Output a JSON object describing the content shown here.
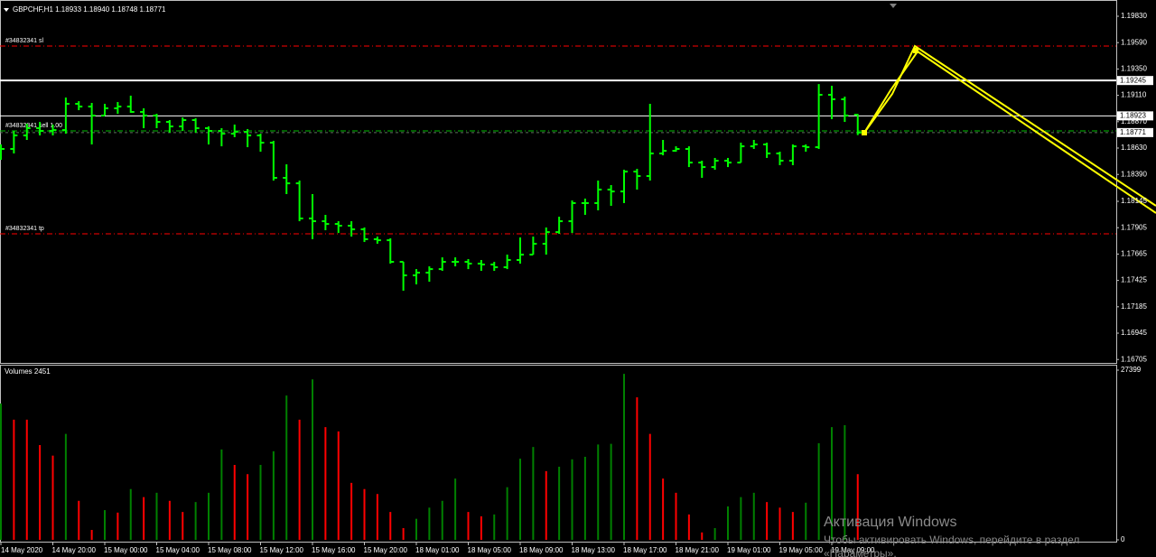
{
  "header": "GBPCHF,H1  1.18933 1.18940 1.18748 1.18771",
  "watermark": {
    "title": "Активация Windows",
    "lines": [
      "Чтобы активировать Windows, перейдите в раздел",
      "«Параметры»."
    ]
  },
  "chart_data": [
    {
      "type": "ohlc",
      "color": "#00ff00",
      "categories": [
        "14 May 2020",
        null,
        null,
        null,
        "14 May 20:00",
        null,
        null,
        null,
        "15 May 00:00",
        null,
        null,
        null,
        "15 May 04:00",
        null,
        null,
        null,
        "15 May 08:00",
        null,
        null,
        null,
        "15 May 12:00",
        null,
        null,
        null,
        "15 May 16:00",
        null,
        null,
        null,
        "15 May 20:00",
        null,
        null,
        null,
        "18 May 01:00",
        null,
        null,
        null,
        "18 May 05:00",
        null,
        null,
        null,
        "18 May 09:00",
        null,
        null,
        null,
        "18 May 13:00",
        null,
        null,
        null,
        "18 May 17:00",
        null,
        null,
        null,
        "18 May 21:00",
        null,
        null,
        null,
        "19 May 01:00",
        null,
        null,
        null,
        "19 May 05:00",
        null,
        null,
        null,
        "19 May 09:00",
        null,
        null
      ],
      "open": [
        1.1854,
        1.18622,
        1.18745,
        1.18811,
        1.18786,
        1.18794,
        1.19033,
        1.19008,
        1.18926,
        1.18992,
        1.19008,
        1.18959,
        1.18926,
        1.18868,
        1.18827,
        1.18885,
        1.18811,
        1.18786,
        1.18761,
        1.18778,
        1.18745,
        1.18679,
        1.18359,
        1.18309,
        1.17989,
        1.17964,
        1.17939,
        1.17923,
        1.1789,
        1.178,
        1.17791,
        1.17594,
        1.17471,
        1.17496,
        1.17528,
        1.17594,
        1.17594,
        1.17578,
        1.1757,
        1.17545,
        1.17611,
        1.1766,
        1.17759,
        1.17865,
        1.17964,
        1.18129,
        1.18129,
        1.18252,
        1.18235,
        1.18416,
        1.18375,
        1.18581,
        1.18605,
        1.18622,
        1.18498,
        1.18457,
        1.18515,
        1.18498,
        1.18646,
        1.18663,
        1.18581,
        1.18515,
        1.18646,
        1.18638,
        1.19115,
        1.19074,
        1.18933
      ],
      "high": [
        1.18663,
        1.18786,
        1.18852,
        1.18868,
        1.18844,
        1.1909,
        1.19057,
        1.19041,
        1.19033,
        1.19049,
        1.19107,
        1.18992,
        1.18942,
        1.18885,
        1.18909,
        1.18901,
        1.18827,
        1.18811,
        1.18844,
        1.18803,
        1.18761,
        1.18696,
        1.18482,
        1.18334,
        1.18211,
        1.18022,
        1.17964,
        1.17964,
        1.17907,
        1.17824,
        1.17808,
        1.17594,
        1.17528,
        1.17553,
        1.17635,
        1.17635,
        1.17619,
        1.17611,
        1.17594,
        1.1766,
        1.17816,
        1.17824,
        1.17907,
        1.18005,
        1.18153,
        1.1817,
        1.18334,
        1.18293,
        1.18433,
        1.18441,
        1.19033,
        1.18704,
        1.18646,
        1.18646,
        1.18515,
        1.1854,
        1.1854,
        1.18679,
        1.18704,
        1.18679,
        1.18597,
        1.18663,
        1.18663,
        1.19213,
        1.19197,
        1.19098,
        1.1894
      ],
      "low": [
        1.18523,
        1.18581,
        1.18704,
        1.18745,
        1.18745,
        1.18761,
        1.18975,
        1.18663,
        1.18926,
        1.18942,
        1.18951,
        1.18811,
        1.18811,
        1.1877,
        1.18786,
        1.1877,
        1.18663,
        1.18646,
        1.18729,
        1.18638,
        1.18597,
        1.18334,
        1.18211,
        1.17964,
        1.178,
        1.17882,
        1.17857,
        1.17824,
        1.17775,
        1.17759,
        1.17578,
        1.17331,
        1.17389,
        1.17413,
        1.17512,
        1.17553,
        1.17528,
        1.17512,
        1.17512,
        1.17528,
        1.17578,
        1.1766,
        1.1766,
        1.17849,
        1.17857,
        1.18022,
        1.18063,
        1.18104,
        1.18129,
        1.18252,
        1.18334,
        1.18564,
        1.18597,
        1.18457,
        1.18359,
        1.18433,
        1.18457,
        1.18498,
        1.18622,
        1.1854,
        1.18474,
        1.18474,
        1.18597,
        1.18622,
        1.18893,
        1.18868,
        1.18748
      ],
      "close": [
        1.18622,
        1.18745,
        1.18811,
        1.18786,
        1.18794,
        1.19033,
        1.19008,
        1.18926,
        1.18992,
        1.19008,
        1.18959,
        1.18926,
        1.18868,
        1.18827,
        1.18885,
        1.18811,
        1.18786,
        1.18761,
        1.18778,
        1.18745,
        1.18679,
        1.18359,
        1.18309,
        1.17989,
        1.17964,
        1.17939,
        1.17923,
        1.1789,
        1.178,
        1.17791,
        1.17594,
        1.17471,
        1.17496,
        1.17528,
        1.17594,
        1.17594,
        1.17578,
        1.1757,
        1.17545,
        1.17611,
        1.1766,
        1.17759,
        1.17865,
        1.17964,
        1.18129,
        1.18129,
        1.18252,
        1.18235,
        1.18416,
        1.18375,
        1.18581,
        1.18605,
        1.18622,
        1.18498,
        1.18457,
        1.18515,
        1.18498,
        1.18646,
        1.18663,
        1.18581,
        1.18515,
        1.18646,
        1.18638,
        1.19115,
        1.19074,
        1.18926,
        1.18771
      ],
      "ylim": [
        1.16674,
        1.19978
      ],
      "yticks": [
        {
          "value": 1.1983,
          "label": "1.19830"
        },
        {
          "value": 1.1959,
          "label": "1.19590"
        },
        {
          "value": 1.1935,
          "label": "1.19350"
        },
        {
          "value": 1.1911,
          "label": "1.19110"
        },
        {
          "value": 1.1887,
          "label": "1.18870"
        },
        {
          "value": 1.1863,
          "label": "1.18630"
        },
        {
          "value": 1.1839,
          "label": "1.18390"
        },
        1.18145,
        1.17905,
        1.17665,
        1.17425,
        1.17185,
        1.16945,
        1.16705
      ],
      "hlines": [
        {
          "value": 1.19245,
          "color": "#ffffff"
        },
        {
          "value": 1.18923,
          "color": "#ffffff"
        }
      ],
      "bid": 1.18771,
      "orders": [
        {
          "label": "#34832341 sl",
          "value": 1.19559,
          "color": "#ff0000"
        },
        {
          "label": "#34832341 sell 1.00",
          "value": 1.18786,
          "color": "#00c000"
        },
        {
          "label": "#34832341 tp",
          "value": 1.17849,
          "color": "#ff0000"
        }
      ]
    },
    {
      "type": "volume",
      "title": "Volumes 2451",
      "up_color": "#008000",
      "down_color": "#ff0000",
      "values": [
        22000,
        19400,
        19400,
        15300,
        13600,
        17100,
        6300,
        1600,
        4800,
        4400,
        8200,
        6900,
        7600,
        6300,
        4500,
        6100,
        7600,
        14600,
        12100,
        10600,
        12100,
        14300,
        23300,
        19400,
        25900,
        18200,
        17500,
        9200,
        8200,
        7400,
        4500,
        1900,
        3400,
        5200,
        6300,
        9900,
        4500,
        3800,
        4100,
        8500,
        13100,
        15000,
        11100,
        11800,
        13000,
        13400,
        15400,
        15500,
        26800,
        23000,
        17100,
        9900,
        7600,
        4100,
        1200,
        1900,
        5400,
        6900,
        7600,
        6100,
        5200,
        4500,
        6000,
        15600,
        18200,
        18500,
        10600
      ],
      "ylim": [
        0,
        27399
      ],
      "yticks": [
        27399,
        0
      ]
    }
  ]
}
